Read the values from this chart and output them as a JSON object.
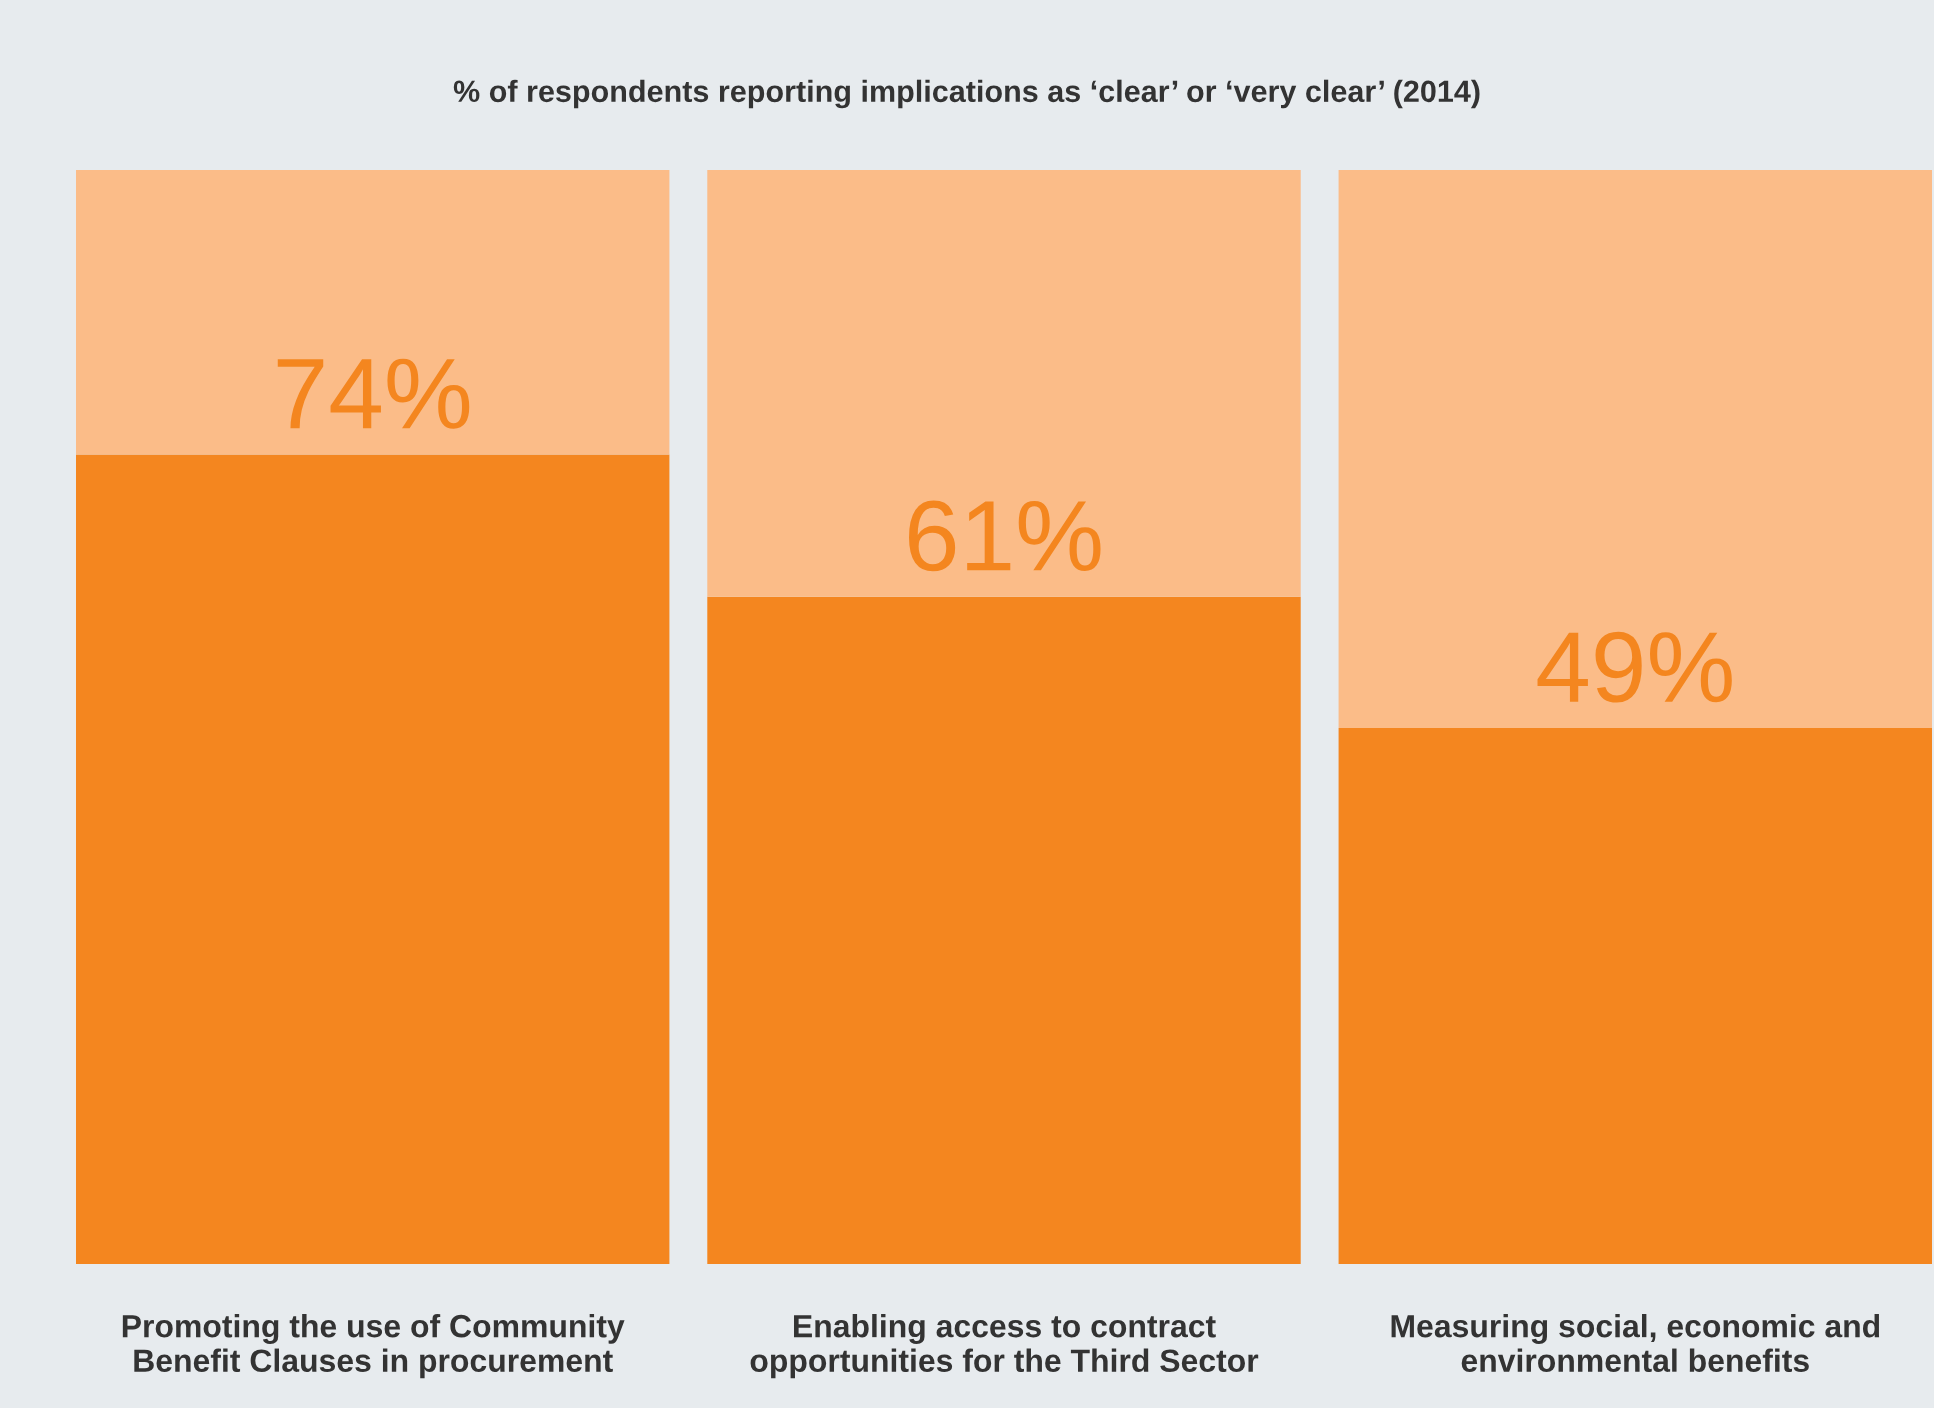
{
  "chart_data": {
    "type": "bar",
    "stacked": true,
    "title": "% of respondents reporting implications as ‘clear’ or ‘very clear’ (2014)",
    "categories": [
      "Promoting the use of Community\nBenefit Clauses in procurement",
      "Enabling access to contract\nopportunities for the Third Sector",
      "Measuring social, economic and\nenvironmental benefits"
    ],
    "series": [
      {
        "color": "#f4861f",
        "values": [
          74,
          61,
          49
        ],
        "value_labels": [
          "74%",
          "61%",
          "49%"
        ]
      },
      {
        "color": "#fbbc88",
        "values": [
          26,
          39,
          51
        ]
      }
    ],
    "grid": false,
    "tick_labels": "x"
  }
}
